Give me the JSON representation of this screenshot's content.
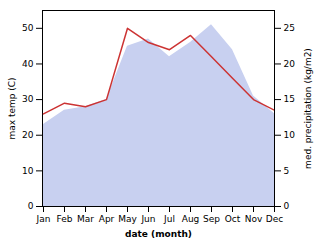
{
  "chart_data": {
    "type": "area",
    "categories": [
      "Jan",
      "Feb",
      "Mar",
      "Apr",
      "May",
      "Jun",
      "Jul",
      "Aug",
      "Sep",
      "Oct",
      "Nov",
      "Dec"
    ],
    "series": [
      {
        "type": "area",
        "color": "#c8d0f0",
        "values": [
          23,
          27,
          28,
          30,
          45,
          47,
          42,
          46,
          51,
          44,
          31,
          26
        ]
      },
      {
        "type": "line",
        "axis": "y2",
        "color": "#cc3333",
        "values": [
          13,
          14.5,
          14,
          15,
          25,
          23,
          22,
          24,
          21,
          18,
          15,
          13.5
        ]
      }
    ],
    "xlabel": "date (month)",
    "ylabel": "max temp (C)",
    "y2label": "med. precipitation (kg/m2)",
    "ylim": [
      0,
      55
    ],
    "yticks": [
      0,
      10,
      20,
      30,
      40,
      50
    ],
    "y2lim": [
      0,
      27.5
    ],
    "y2ticks": [
      0,
      5,
      10,
      15,
      20,
      25
    ]
  }
}
